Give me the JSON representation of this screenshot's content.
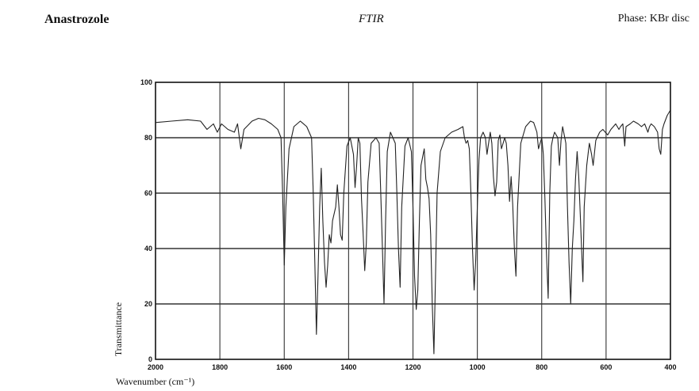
{
  "header": {
    "compound": "Anastrozole",
    "technique": "FTIR",
    "phase": "Phase: KBr disc"
  },
  "chart_data": {
    "type": "line",
    "title": "",
    "xlabel": "Wavenumber (cm⁻¹)",
    "ylabel": "Transmittance",
    "xlim": [
      2000,
      400
    ],
    "ylim": [
      0,
      100
    ],
    "x_reversed": true,
    "x_ticks": [
      2000,
      1800,
      1600,
      1400,
      1200,
      1000,
      800,
      600,
      400
    ],
    "x_tick_labels": [
      "2000",
      "1800",
      "1600",
      "1400",
      "1200",
      "1000",
      "800",
      "600",
      "400"
    ],
    "y_ticks": [
      0,
      20,
      40,
      60,
      80,
      100
    ],
    "y_tick_labels": [
      "0",
      "20",
      "40",
      "60",
      "80",
      "100"
    ],
    "grid": true,
    "series": [
      {
        "color": "#222222",
        "points": [
          [
            2000,
            85.5
          ],
          [
            1950,
            86
          ],
          [
            1900,
            86.5
          ],
          [
            1860,
            86
          ],
          [
            1840,
            83
          ],
          [
            1820,
            85
          ],
          [
            1808,
            82
          ],
          [
            1795,
            85
          ],
          [
            1775,
            83
          ],
          [
            1755,
            82
          ],
          [
            1745,
            85
          ],
          [
            1735,
            76
          ],
          [
            1725,
            83
          ],
          [
            1700,
            86
          ],
          [
            1680,
            87
          ],
          [
            1660,
            86.5
          ],
          [
            1640,
            85
          ],
          [
            1620,
            83
          ],
          [
            1610,
            80
          ],
          [
            1605,
            60
          ],
          [
            1600,
            34
          ],
          [
            1595,
            55
          ],
          [
            1585,
            76
          ],
          [
            1570,
            84
          ],
          [
            1550,
            86
          ],
          [
            1530,
            84
          ],
          [
            1515,
            80
          ],
          [
            1510,
            60
          ],
          [
            1505,
            35
          ],
          [
            1500,
            9
          ],
          [
            1495,
            30
          ],
          [
            1490,
            55
          ],
          [
            1485,
            69
          ],
          [
            1480,
            50
          ],
          [
            1475,
            35
          ],
          [
            1470,
            26
          ],
          [
            1465,
            34
          ],
          [
            1460,
            45
          ],
          [
            1455,
            42
          ],
          [
            1450,
            50
          ],
          [
            1440,
            55
          ],
          [
            1435,
            63
          ],
          [
            1430,
            55
          ],
          [
            1425,
            45
          ],
          [
            1420,
            43
          ],
          [
            1415,
            60
          ],
          [
            1405,
            77
          ],
          [
            1395,
            80
          ],
          [
            1385,
            74
          ],
          [
            1380,
            62
          ],
          [
            1375,
            70
          ],
          [
            1370,
            80
          ],
          [
            1365,
            78
          ],
          [
            1360,
            58
          ],
          [
            1355,
            46
          ],
          [
            1350,
            32
          ],
          [
            1345,
            42
          ],
          [
            1340,
            64
          ],
          [
            1330,
            78
          ],
          [
            1315,
            80
          ],
          [
            1305,
            78
          ],
          [
            1300,
            60
          ],
          [
            1295,
            40
          ],
          [
            1290,
            20
          ],
          [
            1285,
            50
          ],
          [
            1280,
            75
          ],
          [
            1270,
            82
          ],
          [
            1255,
            78
          ],
          [
            1250,
            60
          ],
          [
            1245,
            40
          ],
          [
            1240,
            26
          ],
          [
            1235,
            55
          ],
          [
            1225,
            77
          ],
          [
            1215,
            80
          ],
          [
            1205,
            75
          ],
          [
            1200,
            55
          ],
          [
            1195,
            30
          ],
          [
            1190,
            18
          ],
          [
            1185,
            25
          ],
          [
            1180,
            50
          ],
          [
            1175,
            70
          ],
          [
            1165,
            76
          ],
          [
            1160,
            65
          ],
          [
            1155,
            62
          ],
          [
            1150,
            58
          ],
          [
            1145,
            45
          ],
          [
            1140,
            20
          ],
          [
            1135,
            2
          ],
          [
            1130,
            30
          ],
          [
            1125,
            60
          ],
          [
            1115,
            75
          ],
          [
            1100,
            80
          ],
          [
            1080,
            82
          ],
          [
            1060,
            83
          ],
          [
            1045,
            84
          ],
          [
            1040,
            80
          ],
          [
            1035,
            78
          ],
          [
            1030,
            79
          ],
          [
            1025,
            76
          ],
          [
            1020,
            60
          ],
          [
            1015,
            40
          ],
          [
            1010,
            25
          ],
          [
            1005,
            36
          ],
          [
            1000,
            55
          ],
          [
            995,
            72
          ],
          [
            990,
            80
          ],
          [
            982,
            82
          ],
          [
            975,
            80
          ],
          [
            970,
            74
          ],
          [
            965,
            78
          ],
          [
            960,
            82
          ],
          [
            955,
            78
          ],
          [
            950,
            66
          ],
          [
            945,
            59
          ],
          [
            940,
            64
          ],
          [
            935,
            79
          ],
          [
            930,
            81
          ],
          [
            925,
            76
          ],
          [
            920,
            78
          ],
          [
            915,
            80
          ],
          [
            910,
            78
          ],
          [
            905,
            70
          ],
          [
            900,
            57
          ],
          [
            895,
            66
          ],
          [
            890,
            56
          ],
          [
            885,
            40
          ],
          [
            880,
            30
          ],
          [
            875,
            55
          ],
          [
            865,
            78
          ],
          [
            850,
            84
          ],
          [
            835,
            86
          ],
          [
            825,
            85.5
          ],
          [
            815,
            82
          ],
          [
            810,
            76
          ],
          [
            800,
            80
          ],
          [
            795,
            74
          ],
          [
            790,
            58
          ],
          [
            785,
            38
          ],
          [
            780,
            22
          ],
          [
            775,
            60
          ],
          [
            770,
            77
          ],
          [
            765,
            80
          ],
          [
            760,
            82
          ],
          [
            750,
            80
          ],
          [
            745,
            70
          ],
          [
            740,
            79
          ],
          [
            735,
            84
          ],
          [
            725,
            78
          ],
          [
            720,
            55
          ],
          [
            715,
            35
          ],
          [
            710,
            20
          ],
          [
            705,
            40
          ],
          [
            700,
            50
          ],
          [
            695,
            65
          ],
          [
            690,
            75
          ],
          [
            685,
            66
          ],
          [
            680,
            52
          ],
          [
            676,
            40
          ],
          [
            672,
            28
          ],
          [
            668,
            55
          ],
          [
            660,
            70
          ],
          [
            652,
            78
          ],
          [
            645,
            74
          ],
          [
            640,
            70
          ],
          [
            632,
            79
          ],
          [
            620,
            82
          ],
          [
            610,
            83
          ],
          [
            595,
            81
          ],
          [
            585,
            83
          ],
          [
            570,
            85
          ],
          [
            560,
            83
          ],
          [
            555,
            84
          ],
          [
            548,
            85
          ],
          [
            542,
            77
          ],
          [
            538,
            84
          ],
          [
            525,
            85
          ],
          [
            515,
            86
          ],
          [
            500,
            85
          ],
          [
            490,
            84
          ],
          [
            480,
            85
          ],
          [
            470,
            82
          ],
          [
            465,
            84
          ],
          [
            460,
            85
          ],
          [
            450,
            84
          ],
          [
            440,
            82
          ],
          [
            435,
            76
          ],
          [
            430,
            74
          ],
          [
            425,
            83
          ],
          [
            420,
            85
          ],
          [
            410,
            88
          ],
          [
            400,
            90
          ]
        ]
      }
    ]
  }
}
